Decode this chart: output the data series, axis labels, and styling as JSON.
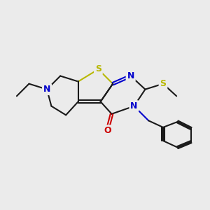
{
  "background_color": "#ebebeb",
  "bond_color": "#1a1a1a",
  "atom_colors": {
    "S": "#b8b800",
    "N": "#0000cc",
    "O": "#cc0000",
    "C": "#1a1a1a"
  },
  "figsize": [
    3.0,
    3.0
  ],
  "dpi": 100
}
